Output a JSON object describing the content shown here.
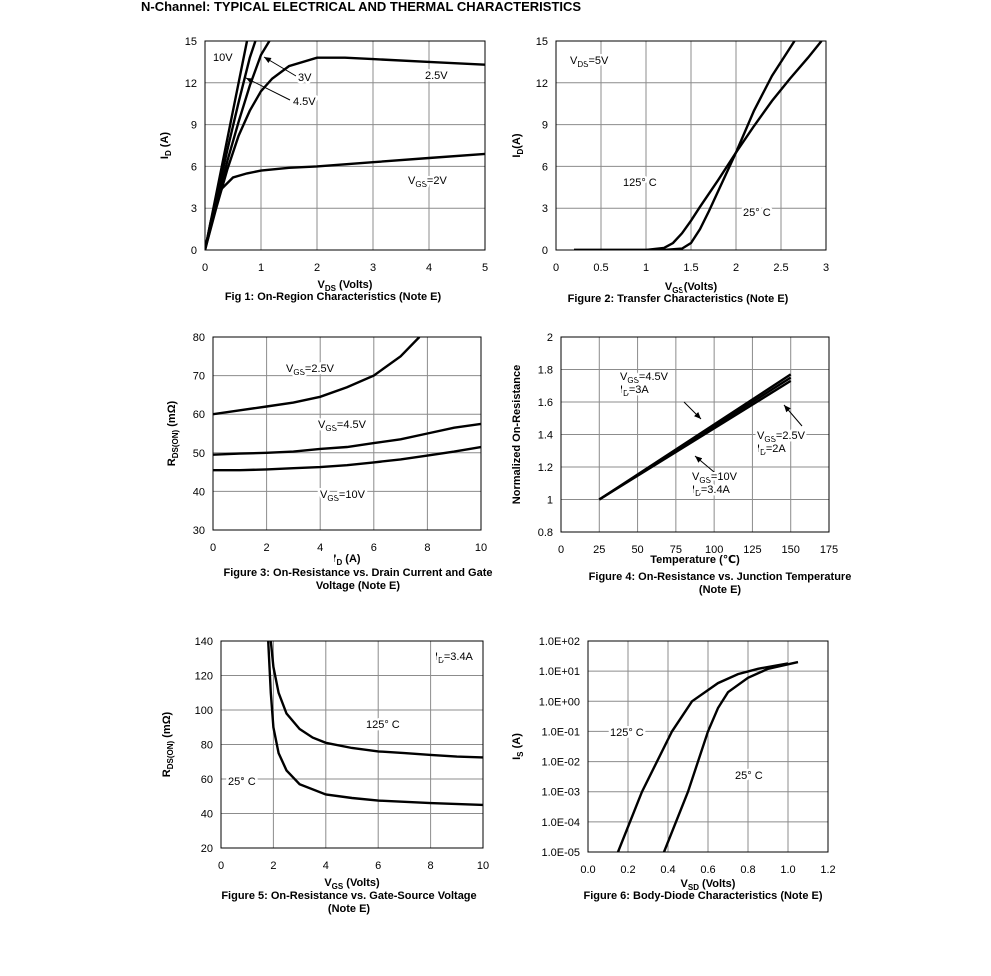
{
  "page_title": "N-Channel: TYPICAL ELECTRICAL AND THERMAL CHARACTERISTICS",
  "chart_data": [
    {
      "type": "line",
      "caption": [
        "Fig 1: On-Region Characteristics (Note E)"
      ],
      "x_label": [
        "V",
        "DS",
        " (Volts)"
      ],
      "y_label": [
        "I",
        "D",
        " (A)"
      ],
      "xlim": [
        0,
        5
      ],
      "xticks": [
        0,
        1,
        2,
        3,
        4,
        5
      ],
      "ylim": [
        0,
        15
      ],
      "yticks": [
        0,
        3,
        6,
        9,
        12,
        15
      ],
      "grid": true,
      "series": [
        {
          "name": "10V",
          "color": "#000000",
          "x": [
            0,
            0.2,
            0.4,
            0.6,
            0.75
          ],
          "values": [
            0,
            4,
            8,
            12,
            15
          ]
        },
        {
          "name": "4.5V",
          "color": "#000000",
          "x": [
            0,
            0.2,
            0.4,
            0.6,
            0.8,
            0.9
          ],
          "values": [
            0,
            3.6,
            7.2,
            10.6,
            13.8,
            15
          ]
        },
        {
          "name": "3V",
          "color": "#000000",
          "x": [
            0,
            0.2,
            0.4,
            0.6,
            0.8,
            1.0,
            1.15
          ],
          "values": [
            0,
            3.2,
            6.4,
            9.2,
            11.8,
            14,
            15
          ]
        },
        {
          "name": "2.5V",
          "color": "#000000",
          "x": [
            0,
            0.2,
            0.4,
            0.6,
            0.8,
            1,
            1.2,
            1.5,
            2,
            2.5,
            3,
            4,
            5
          ],
          "values": [
            0,
            3,
            5.8,
            8.2,
            10,
            11.4,
            12.3,
            13.2,
            13.8,
            13.8,
            13.7,
            13.5,
            13.3
          ]
        },
        {
          "name": [
            "V",
            "GS",
            "=2V"
          ],
          "color": "#000000",
          "x": [
            0,
            0.1,
            0.2,
            0.3,
            0.5,
            0.75,
            1,
            1.5,
            2,
            3,
            4,
            5
          ],
          "values": [
            0,
            2,
            3.5,
            4.4,
            5.2,
            5.5,
            5.7,
            5.9,
            6.0,
            6.3,
            6.6,
            6.9
          ]
        }
      ],
      "annotations": []
    },
    {
      "type": "line",
      "caption": [
        "Figure 2: Transfer Characteristics (Note E)"
      ],
      "x_label": [
        "V",
        "GS",
        "(Volts)"
      ],
      "y_label": [
        "I",
        "D",
        "(A)"
      ],
      "xlim": [
        0,
        3
      ],
      "xticks": [
        0,
        0.5,
        1,
        1.5,
        2,
        2.5,
        3
      ],
      "ylim": [
        0,
        15
      ],
      "yticks": [
        0,
        3,
        6,
        9,
        12,
        15
      ],
      "grid": true,
      "series": [
        {
          "name": "125° C",
          "color": "#000000",
          "x": [
            0.2,
            1.0,
            1.2,
            1.3,
            1.4,
            1.5,
            1.6,
            1.8,
            2.0,
            2.2,
            2.4,
            2.6,
            2.8,
            2.95
          ],
          "values": [
            0,
            0,
            0.15,
            0.5,
            1.2,
            2.1,
            3.1,
            5,
            7,
            8.9,
            10.7,
            12.3,
            13.8,
            15
          ]
        },
        {
          "name": "25° C",
          "color": "#000000",
          "x": [
            0.2,
            1.2,
            1.4,
            1.5,
            1.6,
            1.7,
            1.8,
            2.0,
            2.2,
            2.4,
            2.65
          ],
          "values": [
            0,
            0,
            0.1,
            0.5,
            1.5,
            2.8,
            4.2,
            7,
            10,
            12.5,
            15
          ]
        }
      ],
      "annotations": [
        [
          "V",
          "DS",
          "=5V"
        ]
      ]
    },
    {
      "type": "line",
      "caption": [
        "Figure 3: On-Resistance vs. Drain Current and Gate",
        "Voltage (Note E)"
      ],
      "x_label": [
        "I",
        "D",
        " (A)"
      ],
      "y_label": [
        "R",
        "DS(ON)",
        " (mΩ)"
      ],
      "xlim": [
        0,
        10
      ],
      "xticks": [
        0,
        2,
        4,
        6,
        8,
        10
      ],
      "ylim": [
        30,
        80
      ],
      "yticks": [
        30,
        40,
        50,
        60,
        70,
        80
      ],
      "grid": true,
      "series": [
        {
          "name": [
            "V",
            "GS",
            "=2.5V"
          ],
          "color": "#000000",
          "x": [
            0,
            1,
            2,
            3,
            4,
            5,
            6,
            7,
            7.7
          ],
          "values": [
            60,
            61,
            62,
            63,
            64.5,
            67,
            70,
            75,
            80
          ]
        },
        {
          "name": [
            "V",
            "GS",
            "=4.5V"
          ],
          "color": "#000000",
          "x": [
            0,
            1,
            2,
            3,
            4,
            5,
            6,
            7,
            8,
            9,
            10
          ],
          "values": [
            49.5,
            49.8,
            50,
            50.3,
            51,
            51.5,
            52.5,
            53.5,
            55,
            56.5,
            57.5
          ]
        },
        {
          "name": [
            "V",
            "GS",
            "=10V"
          ],
          "color": "#000000",
          "x": [
            0,
            1,
            2,
            3,
            4,
            5,
            6,
            7,
            8,
            9,
            10
          ],
          "values": [
            45.5,
            45.5,
            45.7,
            46,
            46.3,
            46.8,
            47.5,
            48.3,
            49.3,
            50.3,
            51.5
          ]
        }
      ],
      "annotations": []
    },
    {
      "type": "line",
      "caption": [
        "Figure 4: On-Resistance vs. Junction Temperature",
        "(Note E)"
      ],
      "x_label": "Temperature (℃)",
      "y_label": "Normalized On-Resistance",
      "xlim": [
        0,
        175
      ],
      "xticks": [
        0,
        25,
        50,
        75,
        100,
        125,
        150,
        175
      ],
      "ylim": [
        0.8,
        2
      ],
      "yticks": [
        0.8,
        1,
        1.2,
        1.4,
        1.6,
        1.8,
        2
      ],
      "grid": true,
      "series": [
        {
          "name": [
            [
              "V",
              "GS",
              "=4.5V"
            ],
            [
              "I",
              "D",
              "=3A"
            ]
          ],
          "color": "#000000",
          "x": [
            25,
            150
          ],
          "values": [
            1,
            1.77
          ]
        },
        {
          "name": [
            [
              "V",
              "GS",
              "=10V"
            ],
            [
              "I",
              "D",
              "=3.4A"
            ]
          ],
          "color": "#000000",
          "x": [
            25,
            150
          ],
          "values": [
            1,
            1.75
          ]
        },
        {
          "name": [
            [
              "V",
              "GS",
              "=2.5V"
            ],
            [
              "I",
              "D",
              "=2A"
            ]
          ],
          "color": "#000000",
          "x": [
            25,
            150
          ],
          "values": [
            1,
            1.73
          ]
        }
      ],
      "annotations": []
    },
    {
      "type": "line",
      "caption": [
        "Figure 5: On-Resistance vs. Gate-Source Voltage",
        "(Note E)"
      ],
      "x_label": [
        "V",
        "GS",
        " (Volts)"
      ],
      "y_label": [
        "R",
        "DS(ON)",
        " (mΩ)"
      ],
      "xlim": [
        0,
        10
      ],
      "xticks": [
        0,
        2,
        4,
        6,
        8,
        10
      ],
      "ylim": [
        20,
        140
      ],
      "yticks": [
        20,
        40,
        60,
        80,
        100,
        120,
        140
      ],
      "grid": true,
      "series": [
        {
          "name": "125° C",
          "color": "#000000",
          "x": [
            1.9,
            2,
            2.2,
            2.5,
            3,
            3.5,
            4,
            5,
            6,
            7,
            8,
            9,
            10
          ],
          "values": [
            140,
            125,
            110,
            98,
            89,
            84,
            81,
            78,
            76,
            75,
            74,
            73,
            72.5
          ]
        },
        {
          "name": "25° C",
          "color": "#000000",
          "x": [
            1.8,
            1.9,
            2,
            2.2,
            2.5,
            3,
            4,
            5,
            6,
            8,
            10
          ],
          "values": [
            140,
            110,
            90,
            75,
            65,
            57,
            51,
            49,
            47.5,
            46,
            45
          ]
        }
      ],
      "annotations": [
        [
          "I",
          "D",
          "=3.4A"
        ]
      ]
    },
    {
      "type": "line",
      "caption": [
        "Figure 6: Body-Diode Characteristics (Note E)"
      ],
      "x_label": [
        "V",
        "SD",
        " (Volts)"
      ],
      "y_label": [
        "I",
        "S",
        " (A)"
      ],
      "log_y": true,
      "xlim": [
        0,
        1.2
      ],
      "xticks": [
        {
          "value": 0,
          "label": "0.0"
        },
        0.2,
        0.4,
        0.6,
        0.8,
        {
          "value": 1,
          "label": "1.0"
        },
        1.2
      ],
      "ylim": [
        1e-05,
        100
      ],
      "yticks": [
        {
          "value": 1e-05,
          "label": "1.0E-05"
        },
        {
          "value": 0.0001,
          "label": "1.0E-04"
        },
        {
          "value": 0.001,
          "label": "1.0E-03"
        },
        {
          "value": 0.01,
          "label": "1.0E-02"
        },
        {
          "value": 0.1,
          "label": "1.0E-01"
        },
        {
          "value": 1,
          "label": "1.0E+00"
        },
        {
          "value": 10,
          "label": "1.0E+01"
        },
        {
          "value": 100,
          "label": "1.0E+02"
        }
      ],
      "grid": true,
      "series": [
        {
          "name": "125° C",
          "color": "#000000",
          "x": [
            0.15,
            0.27,
            0.42,
            0.52,
            0.65,
            0.75,
            0.85,
            1.0
          ],
          "values": [
            1e-05,
            0.001,
            0.1,
            1,
            4,
            8,
            12,
            18
          ]
        },
        {
          "name": "25° C",
          "color": "#000000",
          "x": [
            0.38,
            0.5,
            0.6,
            0.65,
            0.7,
            0.8,
            0.9,
            1.05
          ],
          "values": [
            1e-05,
            0.001,
            0.1,
            0.6,
            2,
            6,
            12,
            20
          ]
        }
      ],
      "annotations": []
    }
  ]
}
